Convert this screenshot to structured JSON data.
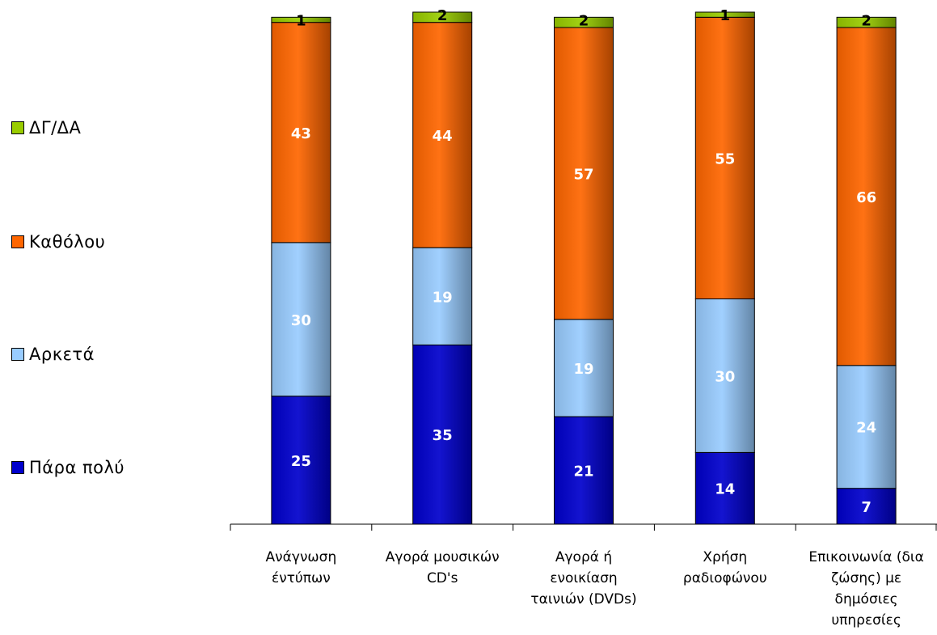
{
  "chart_data": {
    "type": "bar",
    "stacked": true,
    "categories": [
      "Ανάγνωση έντύπων",
      "Αγορά μουσικών CD's",
      "Αγορά ή ενοικίαση ταινιών (DVDs)",
      "Χρήση ραδιοφώνου",
      "Επικοινωνία (δια ζώσης) με δημόσιες υπηρεσίες"
    ],
    "category_lines": [
      [
        "Ανάγνωση",
        "έντύπων"
      ],
      [
        "Αγορά μουσικών",
        "CD's"
      ],
      [
        "Αγορά ή",
        "ενοικίαση",
        "ταινιών (DVDs)"
      ],
      [
        "Χρήση",
        "ραδιοφώνου"
      ],
      [
        "Επικοινωνία (δια",
        "ζώσης) με",
        "δημόσιες",
        "υπηρεσίες"
      ]
    ],
    "series": [
      {
        "name": "Πάρα πολύ",
        "color": "#0000cc",
        "label_color": "#ffffff",
        "values": [
          25,
          35,
          21,
          14,
          7
        ]
      },
      {
        "name": "Αρκετά",
        "color": "#99ccff",
        "label_color": "#ffffff",
        "values": [
          30,
          19,
          19,
          30,
          24
        ]
      },
      {
        "name": "Καθόλου",
        "color": "#ff6600",
        "label_color": "#ffffff",
        "values": [
          43,
          44,
          57,
          55,
          66
        ]
      },
      {
        "name": "ΔΓ/ΔΑ",
        "color": "#99cc00",
        "label_color": "#000000",
        "values": [
          1,
          2,
          2,
          1,
          2
        ]
      }
    ],
    "legend_order": [
      "ΔΓ/ΔΑ",
      "Καθόλου",
      "Αρκετά",
      "Πάρα πολύ"
    ],
    "legend_position": "left",
    "ylim": [
      0,
      100
    ],
    "grid": false
  }
}
